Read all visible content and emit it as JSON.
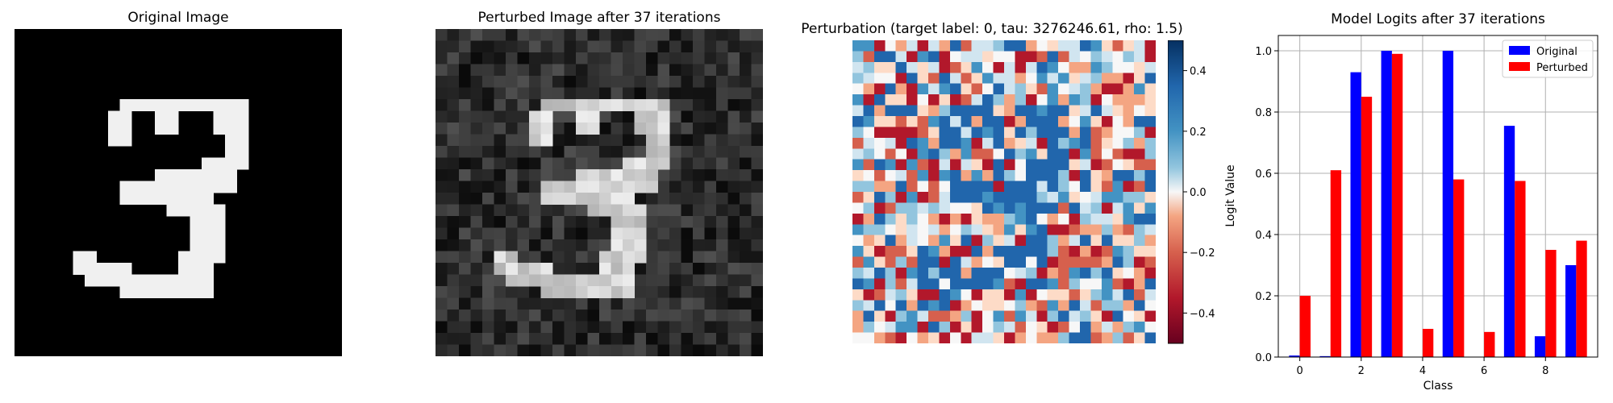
{
  "panels": {
    "original": {
      "title": "Original Image"
    },
    "perturbed": {
      "title": "Perturbed Image after 37 iterations"
    },
    "perturbation": {
      "title": "Perturbation (target label: 0, tau: 3276246.61, rho: 1.5)",
      "colormap": "RdBu",
      "colorbar_ticks": [
        "0.4",
        "0.2",
        "0.0",
        "−0.2",
        "−0.4"
      ]
    }
  },
  "chart_data": {
    "type": "bar",
    "title": "Model Logits after 37 iterations",
    "xlabel": "Class",
    "ylabel": "Logit Value",
    "categories": [
      0,
      1,
      2,
      3,
      4,
      5,
      6,
      7,
      8,
      9
    ],
    "xticks": [
      "0",
      "2",
      "4",
      "6",
      "8"
    ],
    "yticks": [
      "0.0",
      "0.2",
      "0.4",
      "0.6",
      "0.8",
      "1.0"
    ],
    "ylim": [
      0,
      1.05
    ],
    "grid": true,
    "legend_placement": "top-right",
    "series": [
      {
        "name": "Original",
        "color": "#0000ff",
        "values": [
          0.005,
          0.003,
          0.93,
          1.0,
          0.0,
          1.0,
          0.0,
          0.755,
          0.068,
          0.3
        ]
      },
      {
        "name": "Perturbed",
        "color": "#ff0000",
        "values": [
          0.2,
          0.61,
          0.85,
          0.99,
          0.092,
          0.58,
          0.082,
          0.575,
          0.35,
          0.38
        ]
      }
    ]
  }
}
